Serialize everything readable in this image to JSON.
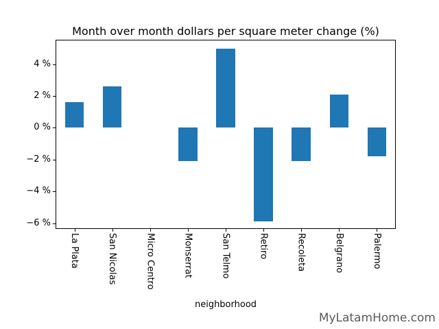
{
  "watermark": "MyLatamHome.com",
  "chart_data": {
    "type": "bar",
    "title": "Month over month dollars per square meter change (%)",
    "xlabel": "neighborhood",
    "ylabel": "",
    "categories": [
      "La Plata",
      "San Nicolas",
      "Micro Centro",
      "Monserrat",
      "San Telmo",
      "Retiro",
      "Recoleta",
      "Belgrano",
      "Palermo"
    ],
    "values": [
      1.6,
      2.6,
      0.0,
      -2.1,
      5.0,
      -5.9,
      -2.1,
      2.1,
      -1.8
    ],
    "yticks": [
      4,
      2,
      0,
      -2,
      -4,
      -6
    ],
    "ytick_labels": [
      "4 %",
      "2 %",
      "0 %",
      "−2 %",
      "−4 %",
      "−6 %"
    ],
    "ylim": [
      -6.36,
      5.54
    ],
    "bar_color": "#1f77b4",
    "grid": false,
    "legend_position": "none"
  }
}
